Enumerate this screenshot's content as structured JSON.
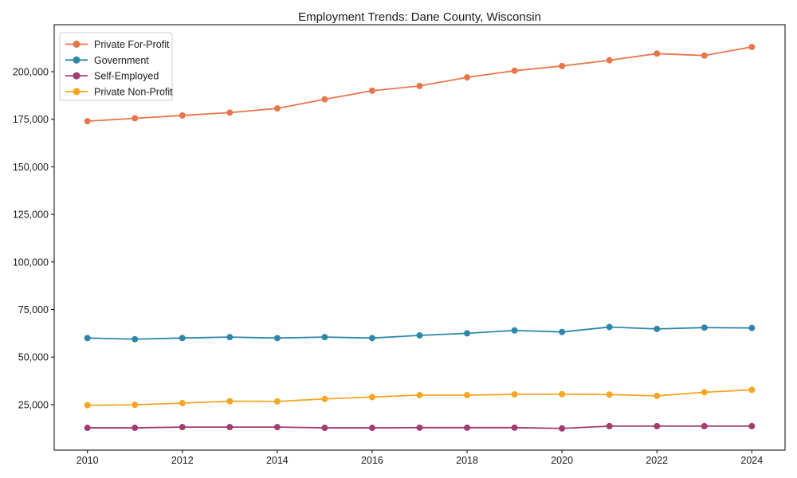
{
  "chart_data": {
    "type": "line",
    "title": "Employment Trends: Dane County, Wisconsin",
    "xlabel": "",
    "ylabel": "",
    "x": [
      2010,
      2011,
      2012,
      2013,
      2014,
      2015,
      2016,
      2017,
      2018,
      2019,
      2020,
      2021,
      2022,
      2023,
      2024
    ],
    "x_ticks": [
      2010,
      2012,
      2014,
      2016,
      2018,
      2020,
      2022,
      2024
    ],
    "x_tick_labels": [
      "2010",
      "2012",
      "2014",
      "2016",
      "2018",
      "2020",
      "2022",
      "2024"
    ],
    "y_ticks": [
      25000,
      50000,
      75000,
      100000,
      125000,
      150000,
      175000,
      200000
    ],
    "y_tick_labels": [
      "25,000",
      "50,000",
      "75,000",
      "100,000",
      "125,000",
      "150,000",
      "175,000",
      "200,000"
    ],
    "xlim": [
      2009.3,
      2024.7
    ],
    "ylim": [
      1100,
      224700
    ],
    "grid": false,
    "legend_position": "upper-left",
    "marker": "circle",
    "series": [
      {
        "name": "Private For-Profit",
        "slug": "private-for-profit",
        "color": "#E8764B",
        "values": [
          174000,
          175500,
          177000,
          178500,
          180700,
          185500,
          190000,
          192500,
          197000,
          200500,
          203000,
          206000,
          209500,
          208500,
          213000
        ]
      },
      {
        "name": "Government",
        "slug": "government",
        "color": "#2E86AB",
        "values": [
          60000,
          59400,
          60000,
          60500,
          60000,
          60500,
          60000,
          61400,
          62500,
          64000,
          63200,
          65800,
          64800,
          65500,
          65300
        ]
      },
      {
        "name": "Self-Employed",
        "slug": "self-employed",
        "color": "#A23B72",
        "values": [
          12800,
          12800,
          13200,
          13200,
          13200,
          12800,
          12800,
          12900,
          12900,
          12900,
          12500,
          13700,
          13700,
          13700,
          13700
        ]
      },
      {
        "name": "Private Non-Profit",
        "slug": "private-non-profit",
        "color": "#F5A623",
        "values": [
          24700,
          24900,
          25800,
          26800,
          26700,
          28000,
          29000,
          30000,
          30000,
          30400,
          30500,
          30300,
          29600,
          31500,
          32800
        ]
      }
    ],
    "axis_color": "#000000",
    "text_color": "#1a1a1a",
    "background": "#ffffff"
  }
}
